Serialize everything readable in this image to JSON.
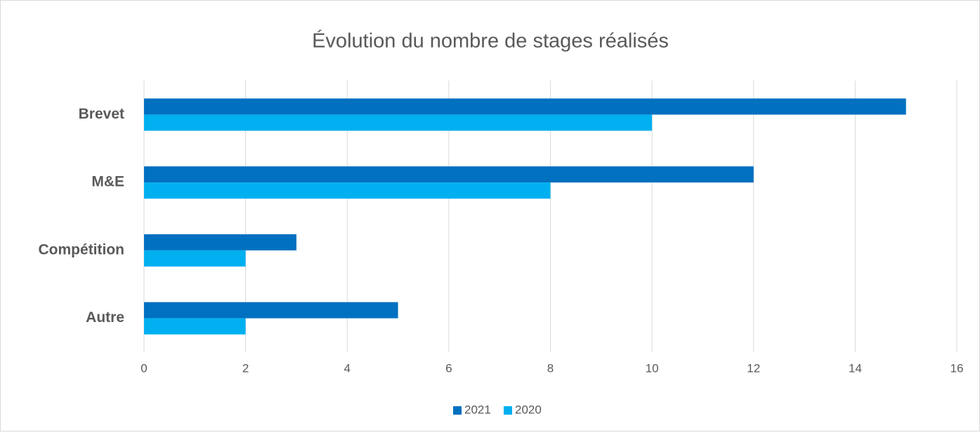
{
  "chart_data": {
    "type": "hbar",
    "title": "Évolution du nombre de stages réalisés",
    "categories": [
      "Brevet",
      "M&E",
      "Compétition",
      "Autre"
    ],
    "series": [
      {
        "name": "2021",
        "color": "#0070c0",
        "values": [
          15,
          12,
          3,
          5
        ]
      },
      {
        "name": "2020",
        "color": "#00b0f0",
        "values": [
          10,
          8,
          2,
          2
        ]
      }
    ],
    "xlim": [
      0,
      16
    ],
    "xticks": [
      0,
      2,
      4,
      6,
      8,
      10,
      12,
      14,
      16
    ],
    "grid": true,
    "legend": "bottom"
  }
}
